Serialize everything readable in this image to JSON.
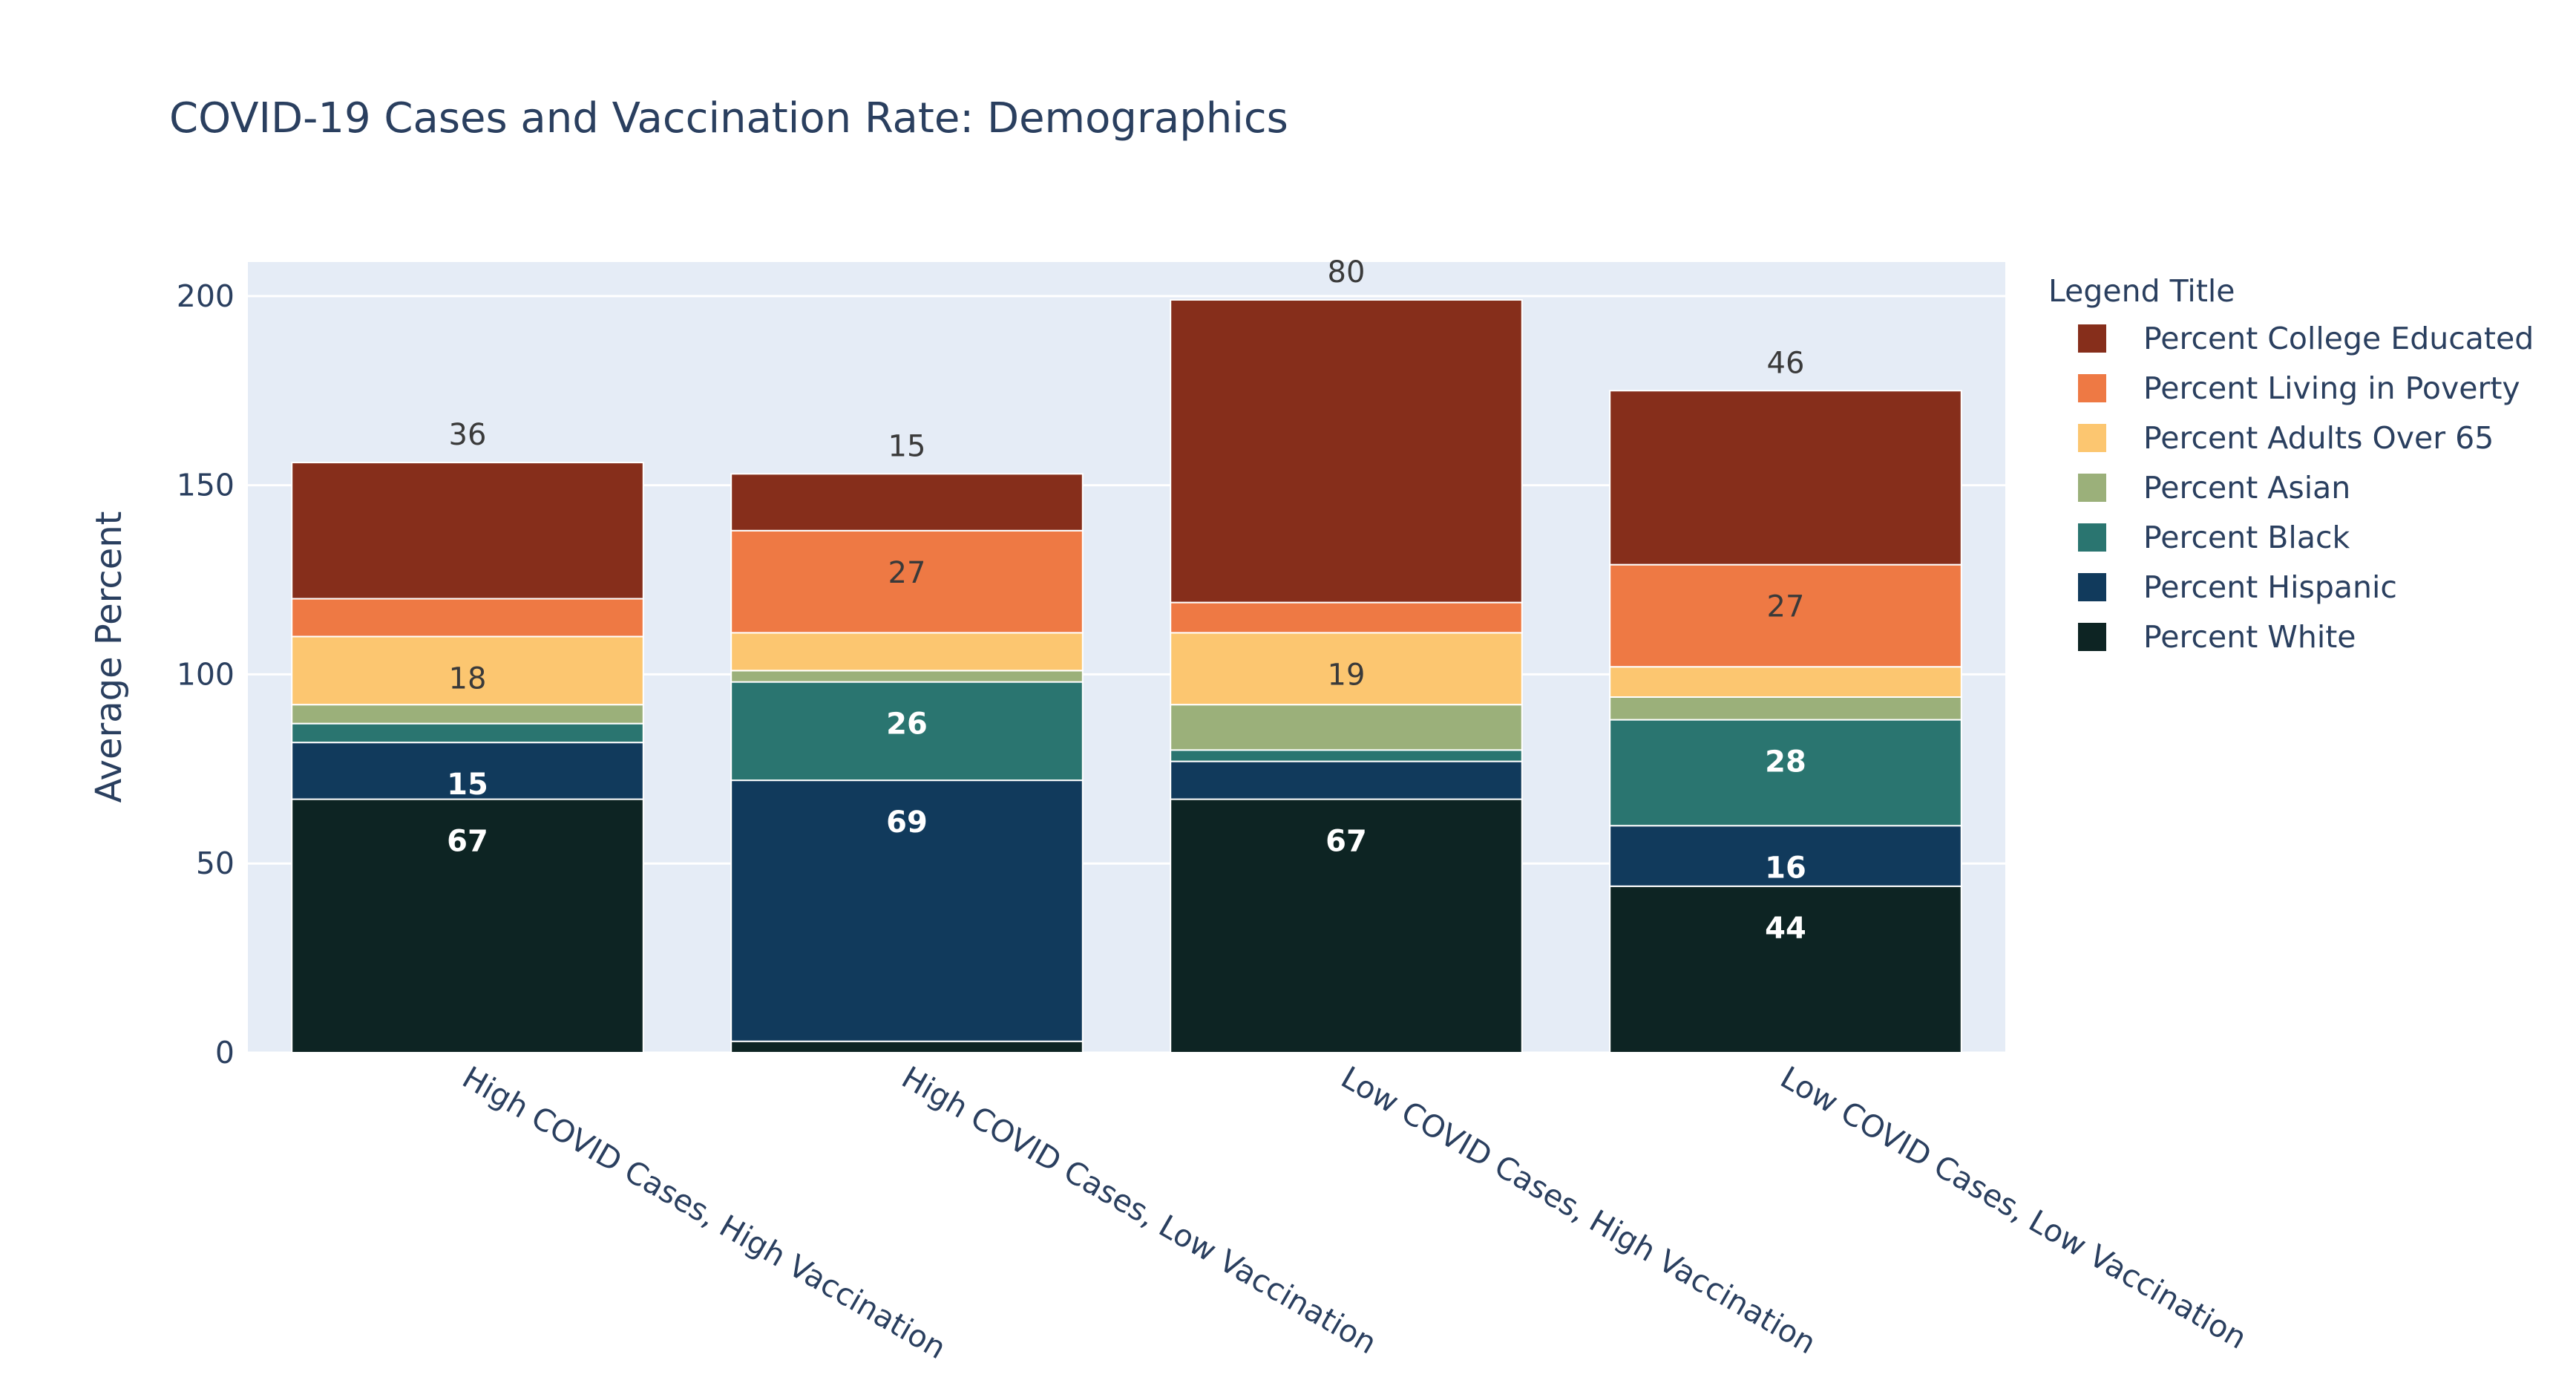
{
  "chart_data": {
    "type": "bar",
    "stacked": true,
    "title": "COVID-19 Cases and Vaccination Rate: Demographics",
    "ylabel": "Average Percent",
    "xlabel": "",
    "ylim": [
      0,
      209
    ],
    "yticks": [
      0,
      50,
      100,
      150,
      200
    ],
    "grid": true,
    "legend": {
      "title": "Legend Title",
      "placement": "right"
    },
    "categories": [
      "High COVID Cases, High Vaccination",
      "High COVID Cases, Low Vaccination",
      "Low COVID Cases, High Vaccination",
      "Low COVID Cases, Low Vaccination"
    ],
    "series": [
      {
        "name": "Percent White",
        "color": "#0d2423",
        "values": [
          67,
          3,
          67,
          44
        ],
        "labels": [
          "67",
          "",
          "67",
          "44"
        ],
        "labelColor": "#ffffff"
      },
      {
        "name": "Percent Hispanic",
        "color": "#113a5c",
        "values": [
          15,
          69,
          10,
          16
        ],
        "labels": [
          "15",
          "69",
          "",
          "16"
        ],
        "labelColor": "#ffffff"
      },
      {
        "name": "Percent Black",
        "color": "#2a7570",
        "values": [
          5,
          26,
          3,
          28
        ],
        "labels": [
          "",
          "26",
          "",
          "28"
        ],
        "labelColor": "#ffffff"
      },
      {
        "name": "Percent Asian",
        "color": "#9bb07a",
        "values": [
          5,
          3,
          12,
          6
        ],
        "labels": [
          "",
          "",
          "",
          ""
        ],
        "labelColor": "#ffffff"
      },
      {
        "name": "Percent Adults Over 65",
        "color": "#fcc670",
        "values": [
          18,
          10,
          19,
          8
        ],
        "labels": [
          "18",
          "",
          "19",
          ""
        ],
        "labelColor": "#3a3a3a"
      },
      {
        "name": "Percent Living in Poverty",
        "color": "#ee7944",
        "values": [
          10,
          27,
          8,
          27
        ],
        "labels": [
          "",
          "27",
          "",
          "27"
        ],
        "labelColor": "#3a3a3a"
      },
      {
        "name": "Percent College Educated",
        "color": "#862e1b",
        "values": [
          36,
          15,
          80,
          46
        ],
        "labels": [
          "36",
          "15",
          "80",
          "46"
        ],
        "labelColor": "#3a3a3a",
        "labelOutside": true
      }
    ]
  }
}
